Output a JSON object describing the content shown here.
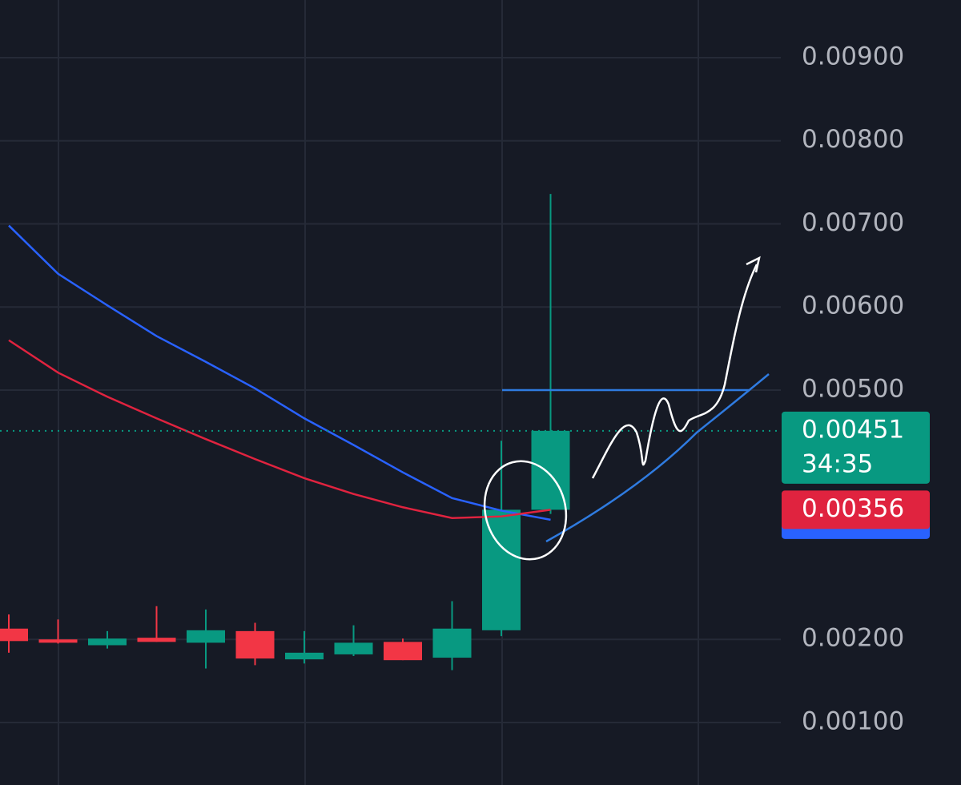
{
  "chart_data": {
    "type": "candlestick",
    "categories": [
      null,
      null,
      null,
      null,
      null,
      null,
      null,
      null,
      null,
      null,
      null,
      null
    ],
    "open": [
      0.00213,
      0.002,
      0.00193,
      0.00202,
      0.00196,
      0.0021,
      0.00176,
      0.00182,
      0.00197,
      0.00178,
      0.00211,
      0.00356
    ],
    "high": [
      0.0023,
      0.00224,
      0.0021,
      0.0024,
      0.00236,
      0.0022,
      0.0021,
      0.00217,
      0.00201,
      0.00246,
      0.00439,
      0.00736
    ],
    "low": [
      0.00184,
      0.00195,
      0.00189,
      0.00197,
      0.00165,
      0.00169,
      0.00171,
      0.0018,
      0.00175,
      0.00163,
      0.00204,
      0.00351
    ],
    "close": [
      0.00198,
      0.00196,
      0.00201,
      0.00197,
      0.00211,
      0.00177,
      0.00184,
      0.00196,
      0.00175,
      0.00213,
      0.00356,
      0.00451
    ],
    "up_color": "#089981",
    "down_color": "#f23645",
    "moving_averages": [
      {
        "color": "#2962ff",
        "values": [
          0.00698,
          0.0064,
          0.00602,
          0.00565,
          0.00534,
          0.00502,
          0.00466,
          0.00434,
          0.00401,
          0.0037,
          0.00355,
          0.00344
        ]
      },
      {
        "color": "#e0233f",
        "values": [
          0.0056,
          0.00521,
          0.00492,
          0.00466,
          0.00441,
          0.00417,
          0.00394,
          0.00375,
          0.00359,
          0.00346,
          0.00348,
          0.00356
        ]
      }
    ],
    "countdown": "34:35",
    "ylim": [
      0.000248,
      0.009694
    ],
    "yticks": [
      {
        "value": 0.001,
        "label": "0.00100"
      },
      {
        "value": 0.002,
        "label": "0.00200"
      },
      {
        "value": 0.005,
        "label": "0.00500"
      },
      {
        "value": 0.006,
        "label": "0.00600"
      },
      {
        "value": 0.007,
        "label": "0.00700"
      },
      {
        "value": 0.008,
        "label": "0.00800"
      },
      {
        "value": 0.009,
        "label": "0.00900"
      }
    ],
    "grid": true
  }
}
